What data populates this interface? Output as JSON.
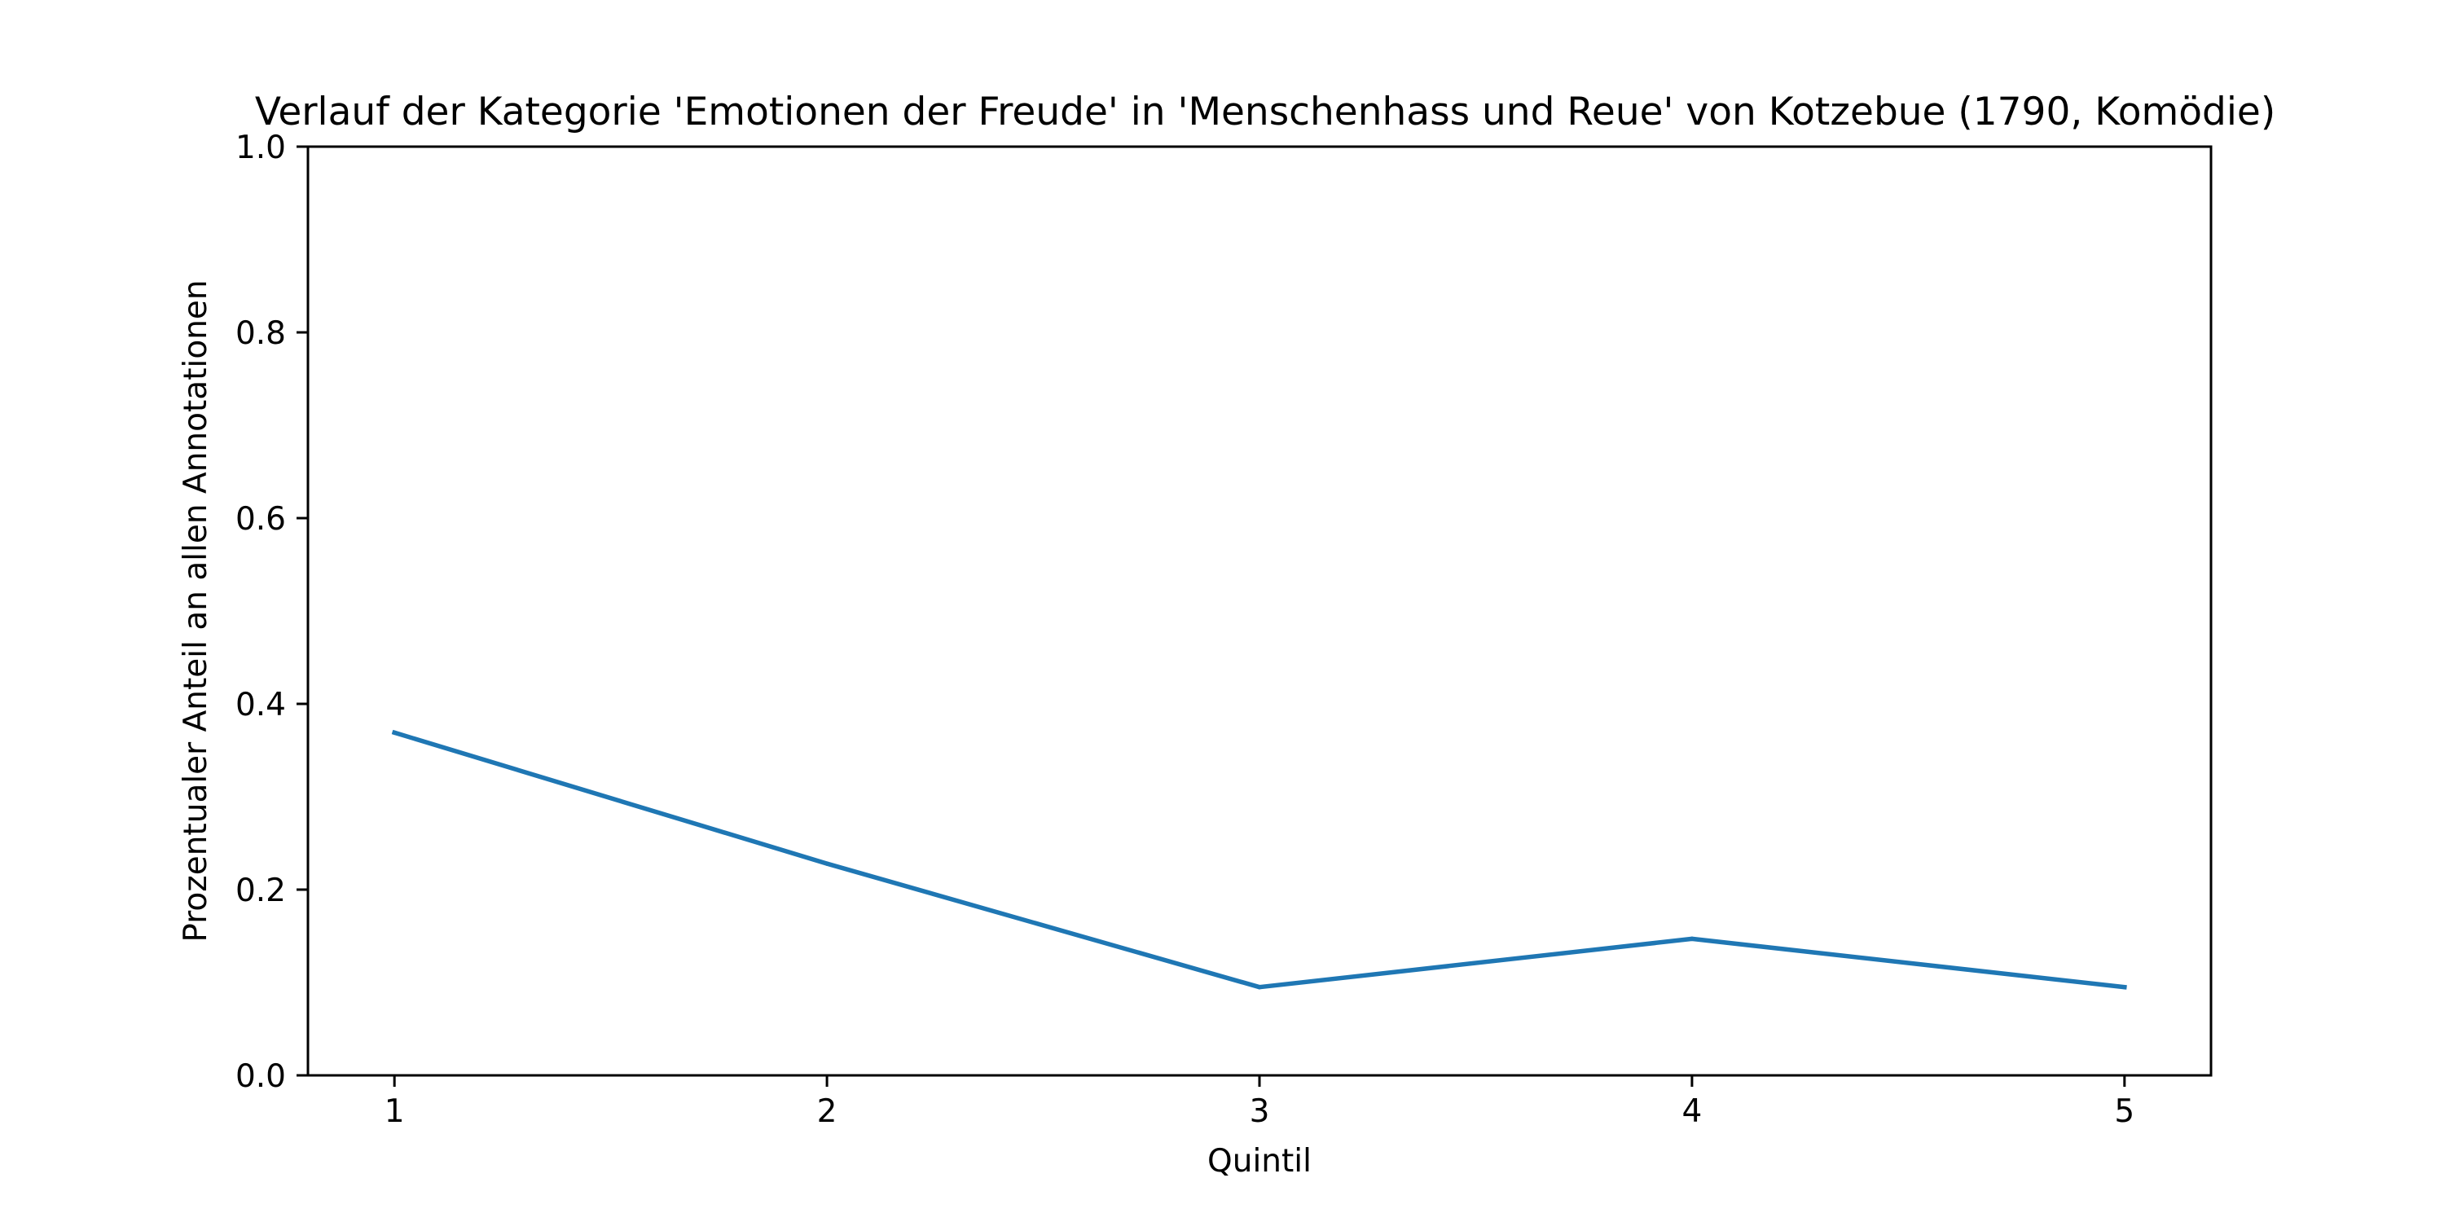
{
  "chart_data": {
    "type": "line",
    "title": "Verlauf der Kategorie 'Emotionen der Freude' in 'Menschenhass und Reue' von Kotzebue (1790, Komödie)",
    "xlabel": "Quintil",
    "ylabel": "Prozentualer Anteil an allen Annotationen",
    "x": [
      1,
      2,
      3,
      4,
      5
    ],
    "x_tick_labels": [
      "1",
      "2",
      "3",
      "4",
      "5"
    ],
    "xlim": [
      0.8,
      5.2
    ],
    "ylim": [
      0.0,
      1.0
    ],
    "y_ticks": [
      0.0,
      0.2,
      0.4,
      0.6,
      0.8,
      1.0
    ],
    "y_tick_labels": [
      "0.0",
      "0.2",
      "0.4",
      "0.6",
      "0.8",
      "1.0"
    ],
    "grid": false,
    "series": [
      {
        "values": [
          0.369,
          0.228,
          0.095,
          0.147,
          0.095
        ],
        "color": "#1f77b4"
      }
    ]
  }
}
